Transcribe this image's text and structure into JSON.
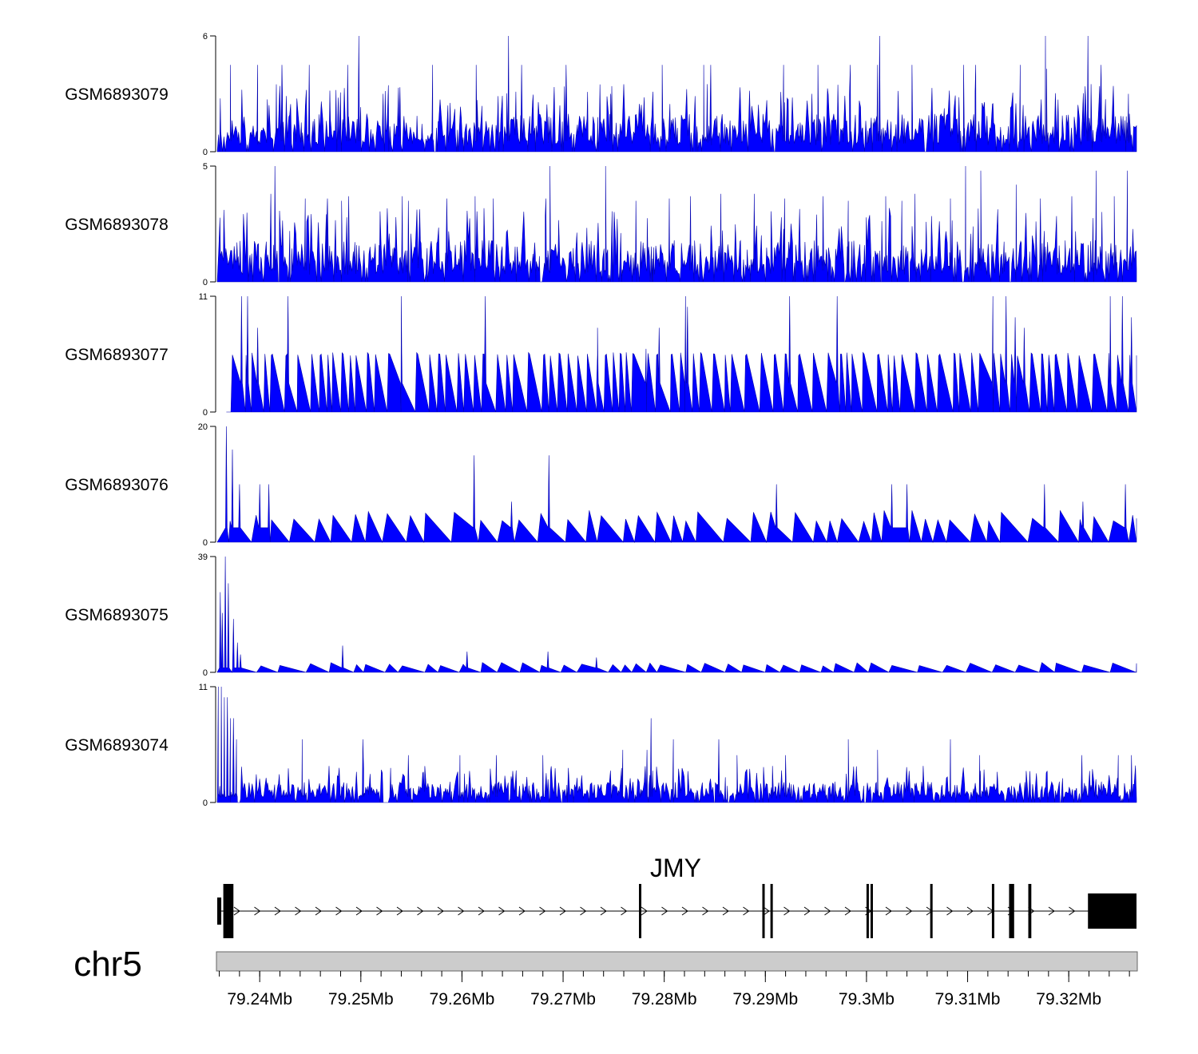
{
  "chart_data": {
    "type": "area",
    "title": "",
    "chromosome": "chr5",
    "x_unit": "Mb",
    "xlim": [
      79.2358,
      79.3267
    ],
    "x_ticks": [
      79.24,
      79.25,
      79.26,
      79.27,
      79.28,
      79.29,
      79.3,
      79.31,
      79.32
    ],
    "x_tick_labels": [
      "79.24Mb",
      "79.25Mb",
      "79.26Mb",
      "79.27Mb",
      "79.28Mb",
      "79.29Mb",
      "79.3Mb",
      "79.31Mb",
      "79.32Mb"
    ],
    "fill_color": "#0000ff",
    "series": [
      {
        "name": "GSM6893079",
        "ylim": [
          0,
          6
        ],
        "y_tick_labels": [
          "0",
          "6"
        ],
        "seed": 79,
        "pattern": "dense",
        "base": 1.1,
        "peaks": [
          [
            79.2371,
            4.5
          ],
          [
            79.2398,
            4.5
          ],
          [
            79.2422,
            4.5
          ],
          [
            79.2449,
            4.5
          ],
          [
            79.2487,
            4.5
          ],
          [
            79.2498,
            6
          ],
          [
            79.2522,
            3
          ],
          [
            79.2571,
            4.5
          ],
          [
            79.2614,
            4.5
          ],
          [
            79.2646,
            6
          ],
          [
            79.2659,
            4.5
          ],
          [
            79.2703,
            4.5
          ],
          [
            79.2747,
            3
          ],
          [
            79.2798,
            4.5
          ],
          [
            79.2839,
            4.5
          ],
          [
            79.2846,
            4.5
          ],
          [
            79.2918,
            4.5
          ],
          [
            79.2952,
            4.5
          ],
          [
            79.2984,
            4.5
          ],
          [
            79.3011,
            4.5
          ],
          [
            79.3013,
            6
          ],
          [
            79.3045,
            4.5
          ],
          [
            79.3096,
            4.5
          ],
          [
            79.3108,
            4.5
          ],
          [
            79.3152,
            4.5
          ],
          [
            79.3177,
            6
          ],
          [
            79.3178,
            4.3
          ],
          [
            79.3219,
            6
          ],
          [
            79.3232,
            4.5
          ],
          [
            79.3259,
            3
          ]
        ]
      },
      {
        "name": "GSM6893078",
        "ylim": [
          0,
          5
        ],
        "y_tick_labels": [
          "0",
          "5"
        ],
        "seed": 78,
        "pattern": "dense",
        "base": 1.0,
        "peaks": [
          [
            79.2411,
            3.8
          ],
          [
            79.2415,
            5
          ],
          [
            79.2445,
            3.6
          ],
          [
            79.2467,
            3.6
          ],
          [
            79.2481,
            3.5
          ],
          [
            79.2488,
            3.7
          ],
          [
            79.2541,
            3.7
          ],
          [
            79.2547,
            3.5
          ],
          [
            79.2585,
            3.6
          ],
          [
            79.2613,
            3.7
          ],
          [
            79.2631,
            3.6
          ],
          [
            79.2683,
            3.6
          ],
          [
            79.2687,
            5
          ],
          [
            79.2742,
            5
          ],
          [
            79.2772,
            3.5
          ],
          [
            79.2805,
            3.6
          ],
          [
            79.2826,
            3.7
          ],
          [
            79.2856,
            3.8
          ],
          [
            79.2889,
            3.8
          ],
          [
            79.2919,
            3.6
          ],
          [
            79.2957,
            3.7
          ],
          [
            79.2982,
            3.5
          ],
          [
            79.3019,
            3.7
          ],
          [
            79.3035,
            3.5
          ],
          [
            79.3048,
            3.8
          ],
          [
            79.3083,
            3.6
          ],
          [
            79.3098,
            5
          ],
          [
            79.3113,
            4.8
          ],
          [
            79.3148,
            4.2
          ],
          [
            79.3172,
            3.6
          ],
          [
            79.3203,
            3.7
          ],
          [
            79.3227,
            4.8
          ],
          [
            79.3245,
            3.7
          ],
          [
            79.3258,
            4.8
          ]
        ]
      },
      {
        "name": "GSM6893077",
        "ylim": [
          0,
          11
        ],
        "y_tick_labels": [
          "0",
          "11"
        ],
        "seed": 77,
        "pattern": "triangles",
        "base": 5.5,
        "start": 79.2367,
        "peaks": [
          [
            79.2382,
            11
          ],
          [
            79.2388,
            11
          ],
          [
            79.2398,
            8
          ],
          [
            79.2428,
            11
          ],
          [
            79.254,
            11
          ],
          [
            79.2623,
            11
          ],
          [
            79.2734,
            8
          ],
          [
            79.2782,
            6
          ],
          [
            79.2795,
            8
          ],
          [
            79.2821,
            11
          ],
          [
            79.2823,
            10
          ],
          [
            79.2924,
            11
          ],
          [
            79.2971,
            11
          ],
          [
            79.3125,
            11
          ],
          [
            79.3138,
            11
          ],
          [
            79.3147,
            9
          ],
          [
            79.3156,
            8
          ],
          [
            79.3241,
            11
          ],
          [
            79.3253,
            11
          ],
          [
            79.3262,
            9
          ]
        ]
      },
      {
        "name": "GSM6893076",
        "ylim": [
          0,
          20
        ],
        "y_tick_labels": [
          "0",
          "20"
        ],
        "seed": 76,
        "pattern": "sparse",
        "base": 5,
        "peaks": [
          [
            79.2367,
            20
          ],
          [
            79.2373,
            16
          ],
          [
            79.238,
            10
          ],
          [
            79.24,
            10
          ],
          [
            79.2409,
            10
          ],
          [
            79.2612,
            15
          ],
          [
            79.2649,
            7
          ],
          [
            79.2686,
            15
          ],
          [
            79.2911,
            10
          ],
          [
            79.3025,
            10
          ],
          [
            79.304,
            10
          ],
          [
            79.3176,
            10
          ],
          [
            79.3214,
            7
          ],
          [
            79.3256,
            10
          ]
        ]
      },
      {
        "name": "GSM6893075",
        "ylim": [
          0,
          39
        ],
        "y_tick_labels": [
          "0",
          "39"
        ],
        "seed": 75,
        "pattern": "sparse",
        "base": 3,
        "peaks": [
          [
            79.2361,
            27
          ],
          [
            79.2363,
            20
          ],
          [
            79.2366,
            39
          ],
          [
            79.2369,
            30
          ],
          [
            79.2374,
            18
          ],
          [
            79.2378,
            10
          ],
          [
            79.2381,
            6
          ],
          [
            79.2482,
            9
          ],
          [
            79.2605,
            7
          ],
          [
            79.2685,
            7
          ],
          [
            79.2733,
            5
          ]
        ]
      },
      {
        "name": "GSM6893074",
        "ylim": [
          0,
          11
        ],
        "y_tick_labels": [
          "0",
          "11"
        ],
        "seed": 74,
        "pattern": "dense",
        "base": 1.1,
        "peaks": [
          [
            79.2359,
            11
          ],
          [
            79.2362,
            11
          ],
          [
            79.2365,
            10
          ],
          [
            79.2368,
            10
          ],
          [
            79.2371,
            8
          ],
          [
            79.2374,
            8
          ],
          [
            79.2377,
            6
          ],
          [
            79.2442,
            6
          ],
          [
            79.2502,
            6
          ],
          [
            79.2547,
            4.5
          ],
          [
            79.2598,
            4.5
          ],
          [
            79.2634,
            4.5
          ],
          [
            79.268,
            4.5
          ],
          [
            79.2759,
            5
          ],
          [
            79.2783,
            5
          ],
          [
            79.2787,
            8
          ],
          [
            79.2809,
            6
          ],
          [
            79.2854,
            6
          ],
          [
            79.2872,
            4.5
          ],
          [
            79.292,
            4.5
          ],
          [
            79.2982,
            6
          ],
          [
            79.3011,
            5
          ],
          [
            79.3083,
            6
          ],
          [
            79.3112,
            4.5
          ],
          [
            79.3213,
            4.5
          ],
          [
            79.3249,
            4.5
          ],
          [
            79.3262,
            4.5
          ]
        ]
      }
    ],
    "gene": {
      "name": "JMY",
      "strand": "+",
      "start": 79.2358,
      "end": 79.3267,
      "exons": [
        [
          79.2358,
          79.2362,
          0.5
        ],
        [
          79.2364,
          79.2374,
          1
        ],
        [
          79.2775,
          79.2777,
          1
        ],
        [
          79.2897,
          79.2899,
          1
        ],
        [
          79.2905,
          79.2907,
          1
        ],
        [
          79.3,
          79.3002,
          1
        ],
        [
          79.3004,
          79.3006,
          1
        ],
        [
          79.3063,
          79.3065,
          1
        ],
        [
          79.3124,
          79.3126,
          1
        ],
        [
          79.3141,
          79.3146,
          1
        ],
        [
          79.316,
          79.3163,
          1
        ],
        [
          79.3219,
          79.3267,
          0.65
        ]
      ]
    }
  }
}
